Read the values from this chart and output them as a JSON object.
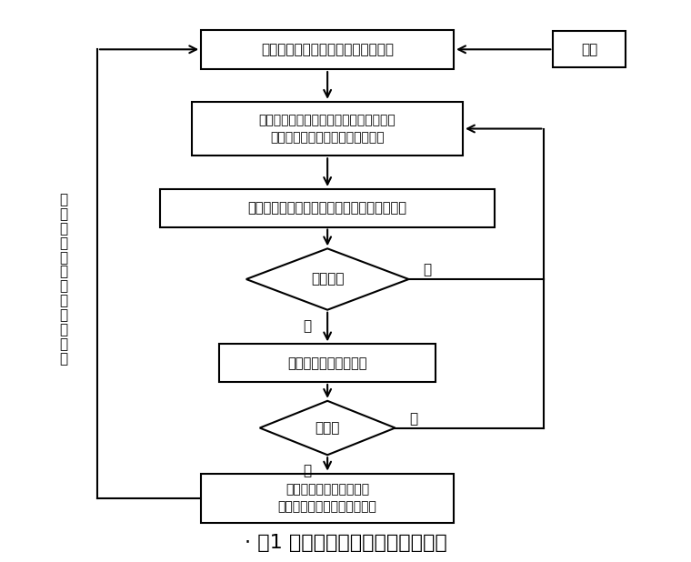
{
  "background_color": "#ffffff",
  "text_color": "#000000",
  "title": "⋅ 图1 单元工程质量检验工作程序图",
  "title_fontsize": 16,
  "box1_text": "单元（工序）工程施工（处理）完毕",
  "box2_line1": "施工单位进行自检，作好施工记录，填报",
  "box2_line2": "单元（工序）工程施工质量评定表",
  "box3_text": "监理单位审核自检资料是否真实、可靠、完整",
  "diamond1_text": "审核结果",
  "box4_text": "监理单位现场抓样检验",
  "diamond2_text": "合格否",
  "box5_line1": "监理单位审核、签认单元",
  "box5_line2": "（工序）工程施工质量评定表",
  "process_text": "处理",
  "yes_text": "是",
  "no_text": "否",
  "left_text": "进入下一单元（工序）工程",
  "lw": 1.5
}
